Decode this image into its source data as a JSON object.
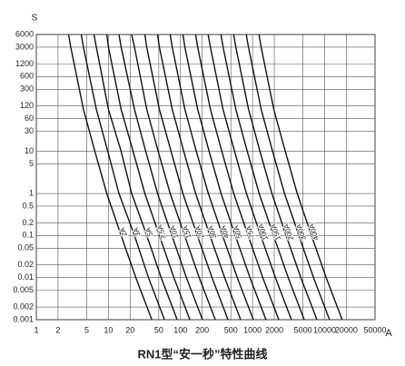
{
  "chart_data": {
    "type": "line",
    "title": "RN1型“安一秒”特性曲线",
    "ylabel": "S",
    "xlabel": "A",
    "xlog": true,
    "ylog": true,
    "grid": true,
    "color": "#111111",
    "xlim": [
      1,
      50000
    ],
    "ylim": [
      0.001,
      6000
    ],
    "xticks": [
      1,
      2,
      5,
      10,
      20,
      50,
      100,
      200,
      500,
      1000,
      2000,
      5000,
      10000,
      20000,
      50000
    ],
    "yticks": [
      0.001,
      0.002,
      0.005,
      0.01,
      0.02,
      0.05,
      0.1,
      0.2,
      0.5,
      1,
      5,
      10,
      30,
      60,
      120,
      300,
      600,
      1200,
      3000,
      6000
    ],
    "series": [
      {
        "name": "2A",
        "x": [
          2.8,
          3,
          4.5,
          6.5,
          9.5,
          15,
          24,
          40
        ],
        "values": [
          6000,
          3000,
          100,
          10,
          1,
          0.1,
          0.01,
          0.001
        ]
      },
      {
        "name": "3A",
        "x": [
          4.2,
          4.5,
          6.8,
          9.8,
          14,
          23,
          36,
          60
        ],
        "values": [
          6000,
          3000,
          100,
          10,
          1,
          0.1,
          0.01,
          0.001
        ]
      },
      {
        "name": "5A",
        "x": [
          6.3,
          6.8,
          10,
          15,
          21,
          34,
          54,
          90
        ],
        "values": [
          6000,
          3000,
          100,
          10,
          1,
          0.1,
          0.01,
          0.001
        ]
      },
      {
        "name": "7.5A",
        "x": [
          9.5,
          10,
          15,
          22,
          32,
          51,
          81,
          135
        ],
        "values": [
          6000,
          3000,
          100,
          10,
          1,
          0.1,
          0.01,
          0.001
        ]
      },
      {
        "name": "10A",
        "x": [
          14,
          15,
          23,
          33,
          48,
          76,
          121,
          202
        ],
        "values": [
          6000,
          3000,
          100,
          10,
          1,
          0.1,
          0.01,
          0.001
        ]
      },
      {
        "name": "15A",
        "x": [
          21,
          23,
          34,
          49,
          72,
          114,
          182,
          304
        ],
        "values": [
          6000,
          3000,
          100,
          10,
          1,
          0.1,
          0.01,
          0.001
        ]
      },
      {
        "name": "20A",
        "x": [
          32,
          34,
          51,
          74,
          108,
          171,
          274,
          456
        ],
        "values": [
          6000,
          3000,
          100,
          10,
          1,
          0.1,
          0.01,
          0.001
        ]
      },
      {
        "name": "30A",
        "x": [
          48,
          51,
          77,
          111,
          162,
          256,
          410,
          684
        ],
        "values": [
          6000,
          3000,
          100,
          10,
          1,
          0.1,
          0.01,
          0.001
        ]
      },
      {
        "name": "40A",
        "x": [
          72,
          77,
          115,
          166,
          243,
          384,
          614,
          1024
        ],
        "values": [
          6000,
          3000,
          100,
          10,
          1,
          0.1,
          0.01,
          0.001
        ]
      },
      {
        "name": "50A",
        "x": [
          108,
          115,
          173,
          250,
          365,
          576,
          922,
          1536
        ],
        "values": [
          6000,
          3000,
          100,
          10,
          1,
          0.1,
          0.01,
          0.001
        ]
      },
      {
        "name": "75A",
        "x": [
          162,
          173,
          260,
          375,
          548,
          866,
          1385,
          2308
        ],
        "values": [
          6000,
          3000,
          100,
          10,
          1,
          0.1,
          0.01,
          0.001
        ]
      },
      {
        "name": "100A",
        "x": [
          242,
          260,
          389,
          562,
          822,
          1298,
          2076,
          3460
        ],
        "values": [
          6000,
          3000,
          100,
          10,
          1,
          0.1,
          0.01,
          0.001
        ]
      },
      {
        "name": "150A",
        "x": [
          364,
          390,
          585,
          845,
          1235,
          1950,
          3120,
          5200
        ],
        "values": [
          6000,
          3000,
          100,
          10,
          1,
          0.1,
          0.01,
          0.001
        ]
      },
      {
        "name": "200A",
        "x": [
          546,
          585,
          878,
          1268,
          1853,
          2925,
          4680,
          7800
        ],
        "values": [
          6000,
          3000,
          100,
          10,
          1,
          0.1,
          0.01,
          0.001
        ]
      },
      {
        "name": "300A",
        "x": [
          818,
          876,
          1314,
          1898,
          2774,
          4380,
          7008,
          11680
        ],
        "values": [
          6000,
          3000,
          100,
          10,
          1,
          0.1,
          0.01,
          0.001
        ]
      },
      {
        "name": "400A",
        "x": [
          1226,
          1314,
          1971,
          2847,
          4161,
          6570,
          10512,
          17520
        ],
        "values": [
          6000,
          3000,
          100,
          10,
          1,
          0.1,
          0.01,
          0.001
        ]
      }
    ]
  }
}
